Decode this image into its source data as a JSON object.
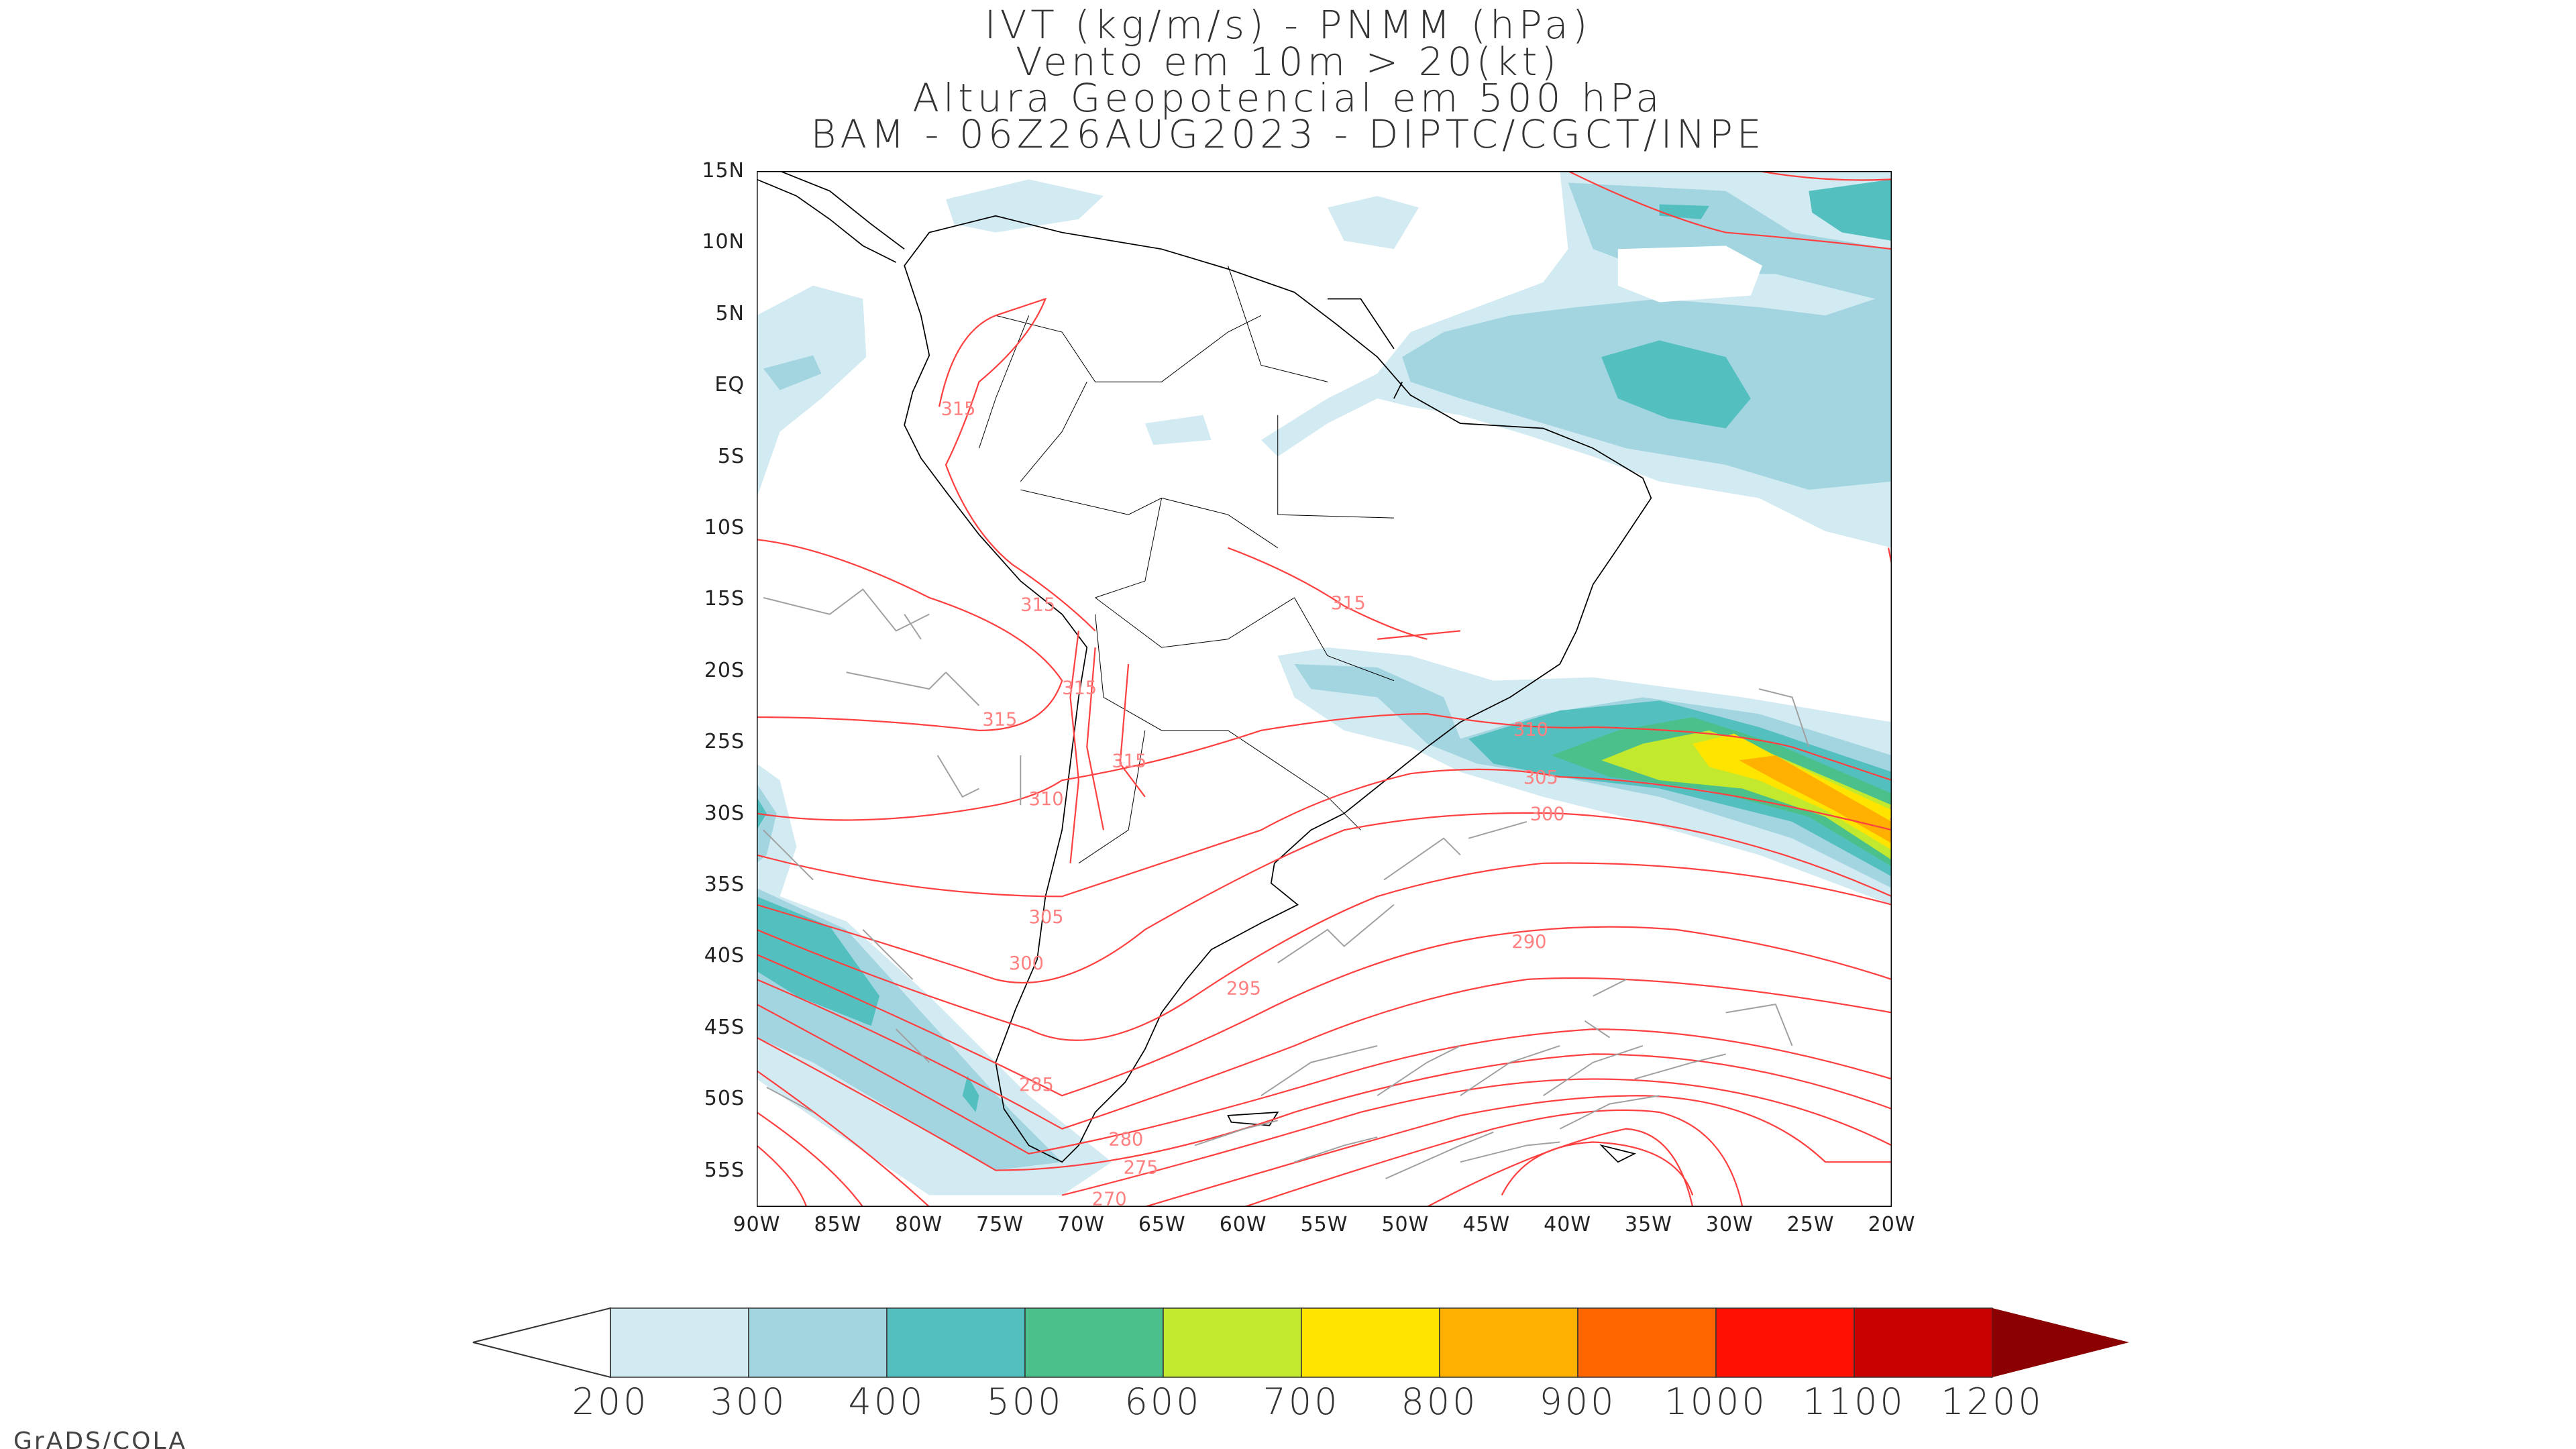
{
  "title_lines": [
    "IVT (kg/m/s) - PNMM (hPa)",
    "Vento em 10m > 20(kt)",
    "Altura Geopotencial em 500 hPa",
    "BAM - 06Z26AUG2023 - DIPTC/CGCT/INPE"
  ],
  "footer": "GrADS/COLA",
  "chart_data": {
    "type": "heatmap",
    "title": "IVT (kg/m/s) - PNMM (hPa) / Vento em 10m > 20(kt) / Altura Geopotencial em 500 hPa",
    "subtitle": "BAM - 06Z26AUG2023 - DIPTC/CGCT/INPE",
    "xlim": [
      -90,
      -20
    ],
    "ylim": [
      -57.5,
      15
    ],
    "lat_ticks": [
      "15N",
      "10N",
      "5N",
      "EQ",
      "5S",
      "10S",
      "15S",
      "20S",
      "25S",
      "30S",
      "35S",
      "40S",
      "45S",
      "50S",
      "55S"
    ],
    "lon_ticks": [
      "90W",
      "85W",
      "80W",
      "75W",
      "70W",
      "65W",
      "60W",
      "55W",
      "50W",
      "45W",
      "40W",
      "35W",
      "30W",
      "25W",
      "20W"
    ],
    "colorbar": {
      "labels": [
        "200",
        "300",
        "400",
        "500",
        "600",
        "700",
        "800",
        "900",
        "1000",
        "1100",
        "1200"
      ],
      "below_color": "#ffffff",
      "colors": [
        "#d2eaf1",
        "#a3d5e1",
        "#53c0bf",
        "#4bc08a",
        "#c3e92f",
        "#ffe400",
        "#ffb000",
        "#ff6600",
        "#ff1000",
        "#c80000"
      ],
      "above_color": "#8b0000"
    },
    "contour_labels": [
      "315",
      "315",
      "315",
      "315",
      "315",
      "315",
      "310",
      "310",
      "305",
      "305",
      "300",
      "300",
      "300",
      "295",
      "290",
      "285",
      "280",
      "275",
      "270"
    ],
    "contour_color": "#ff4040",
    "wind_barb_color": "#a0a0a0",
    "coastline_color": "#000000"
  }
}
